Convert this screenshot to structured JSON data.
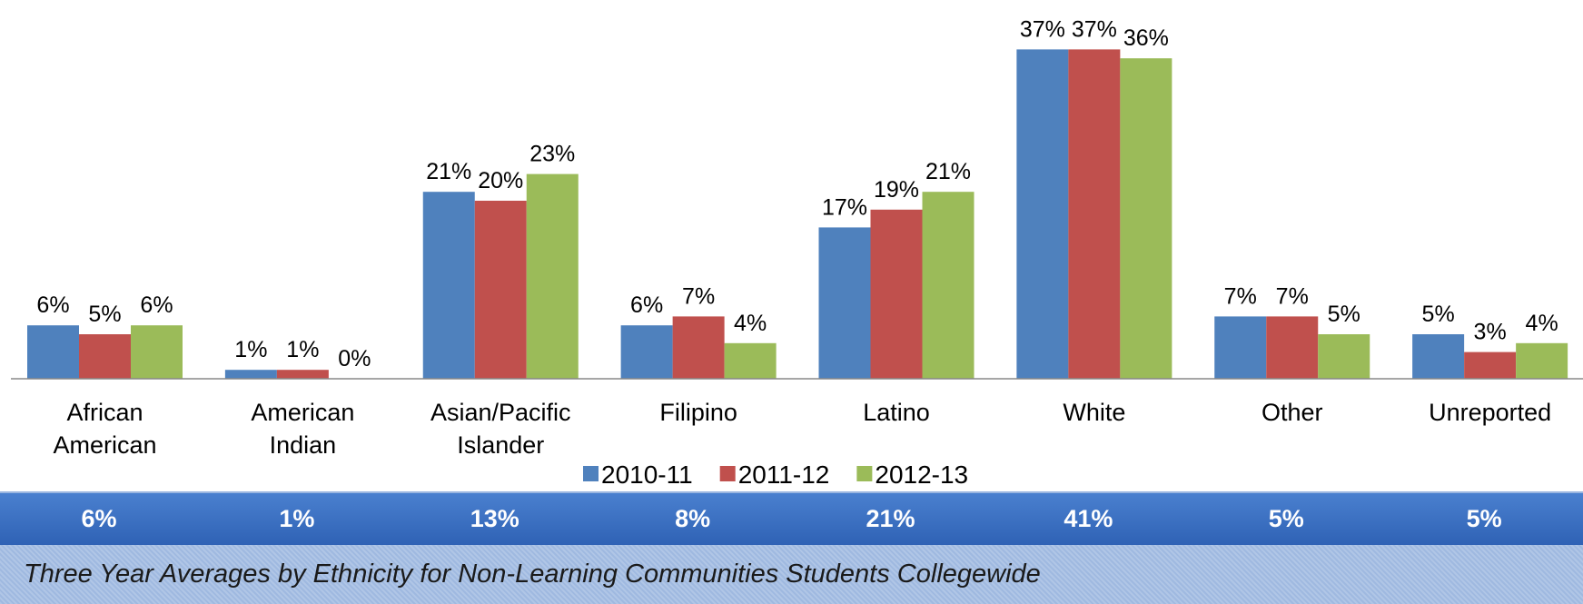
{
  "chart_data": {
    "type": "bar",
    "categories": [
      "African American",
      "American Indian",
      "Asian/Pacific Islander",
      "Filipino",
      "Latino",
      "White",
      "Other",
      "Unreported"
    ],
    "series": [
      {
        "name": "2010-11",
        "color": "#4f81bd",
        "values": [
          6,
          1,
          21,
          6,
          17,
          37,
          7,
          5
        ],
        "value_labels": [
          "6%",
          "1%",
          "21%",
          "6%",
          "17%",
          "37%",
          "7%",
          "5%"
        ]
      },
      {
        "name": "2011-12",
        "color": "#c0504d",
        "values": [
          5,
          1,
          20,
          7,
          19,
          37,
          7,
          3
        ],
        "value_labels": [
          "5%",
          "1%",
          "20%",
          "7%",
          "19%",
          "37%",
          "7%",
          "3%"
        ]
      },
      {
        "name": "2012-13",
        "color": "#9bbb59",
        "values": [
          6,
          0,
          23,
          4,
          21,
          36,
          5,
          4
        ],
        "value_labels": [
          "6%",
          "0%",
          "23%",
          "4%",
          "21%",
          "36%",
          "5%",
          "4%"
        ]
      }
    ],
    "legend": "bottom"
  },
  "summary": {
    "averages": [
      "6%",
      "1%",
      "13%",
      "8%",
      "21%",
      "41%",
      "5%",
      "5%"
    ],
    "caption": "Three Year Averages  by Ethnicity for Non-Learning Communities Students Collegewide"
  }
}
